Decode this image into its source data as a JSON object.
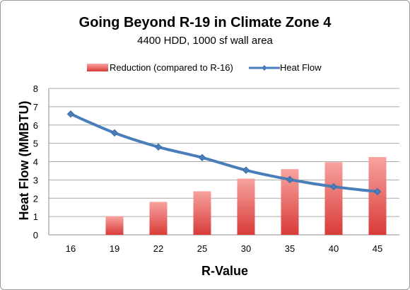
{
  "chart_data": {
    "type": "bar",
    "title": "Going Beyond R-19 in Climate Zone 4",
    "subtitle": "4400 HDD, 1000 sf wall area",
    "xlabel": "R-Value",
    "ylabel": "Heat Flow (MMBTU)",
    "categories": [
      "16",
      "19",
      "22",
      "25",
      "30",
      "35",
      "40",
      "45"
    ],
    "ylim": [
      0,
      8
    ],
    "yticks": [
      "0",
      "1",
      "2",
      "3",
      "4",
      "5",
      "6",
      "7",
      "8"
    ],
    "grid": true,
    "legend_position": "top",
    "series": [
      {
        "name": "Reduction (compared to R-16)",
        "type": "bar",
        "color": "#e8524f",
        "values": [
          0,
          1.02,
          1.8,
          2.38,
          3.07,
          3.59,
          3.97,
          4.25
        ]
      },
      {
        "name": "Heat Flow",
        "type": "line",
        "color": "#4a7ebb",
        "values": [
          6.6,
          5.57,
          4.8,
          4.22,
          3.53,
          3.02,
          2.63,
          2.36
        ]
      }
    ]
  }
}
